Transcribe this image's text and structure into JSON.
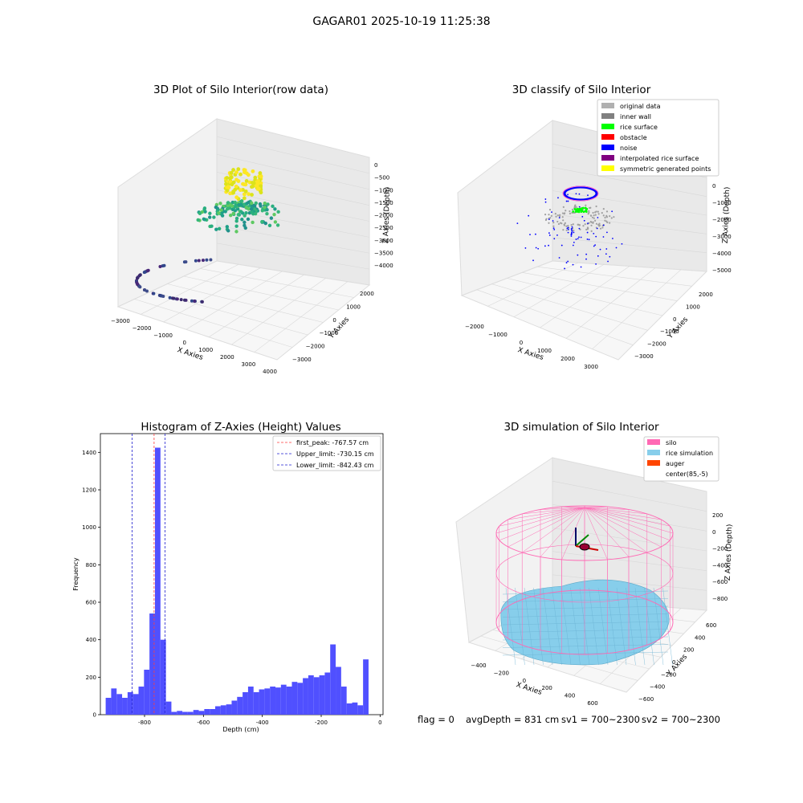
{
  "suptitle": "GAGAR01 2025-10-19 11:25:38",
  "colors": {
    "bar": "#5050ff",
    "first_peak": "#ff3b3b",
    "limits": "#1f1fcf",
    "silo": "#ff69b4",
    "rice": "#87ceeb",
    "auger": "#ff4500",
    "grid_pane": "#f2f2f2"
  },
  "panels": {
    "raw": {
      "title": "3D Plot of Silo Interior(row data)",
      "xlabel": "X Axies",
      "ylabel": "Y Axies",
      "zlabel": "Z Axies (Depth)",
      "x_ticks": [
        "−3000",
        "−2000",
        "−1000",
        "0",
        "1000",
        "2000",
        "3000",
        "4000"
      ],
      "y_ticks": [
        "2000",
        "1000",
        "0",
        "−1000",
        "−2000",
        "−3000"
      ],
      "z_ticks": [
        "0",
        "−500",
        "−1000",
        "−1500",
        "−2000",
        "−2500",
        "−3000",
        "−3500",
        "−4000"
      ]
    },
    "classify": {
      "title": "3D classify of Silo Interior",
      "xlabel": "X Axies",
      "ylabel": "Y Axies",
      "zlabel": "Z Axies (Depth)",
      "x_ticks": [
        "−2000",
        "−1000",
        "0",
        "1000",
        "2000",
        "3000"
      ],
      "y_ticks": [
        "2000",
        "1000",
        "0",
        "−1000",
        "−2000",
        "−3000"
      ],
      "z_ticks": [
        "0",
        "−1000",
        "−2000",
        "−3000",
        "−4000",
        "−5000"
      ],
      "legend": [
        {
          "label": "original data",
          "color": "#b0b0b0"
        },
        {
          "label": "inner wall",
          "color": "#808080"
        },
        {
          "label": "rice surface",
          "color": "#00ff00"
        },
        {
          "label": "obstacle",
          "color": "#ff0000"
        },
        {
          "label": "noise",
          "color": "#0000ff"
        },
        {
          "label": "interpolated rice surface",
          "color": "#800080"
        },
        {
          "label": "symmetric generated points",
          "color": "#ffff00"
        }
      ]
    },
    "simulation": {
      "title": "3D simulation of Silo Interior",
      "xlabel": "X Axies",
      "ylabel": "Y Axies",
      "zlabel": "Z Axies (Depth)",
      "x_ticks": [
        "−400",
        "−200",
        "0",
        "200",
        "400",
        "600"
      ],
      "y_ticks": [
        "600",
        "400",
        "200",
        "0",
        "−200",
        "−400",
        "−600"
      ],
      "z_ticks": [
        "200",
        "0",
        "−200",
        "−400",
        "−600",
        "−800"
      ],
      "legend": [
        {
          "label": "silo",
          "color": "#ff69b4"
        },
        {
          "label": "rice simulation",
          "color": "#87ceeb"
        },
        {
          "label": "auger",
          "color": "#ff4500"
        },
        {
          "label": "center(85,-5)",
          "color": ""
        }
      ]
    }
  },
  "status_line": {
    "flag": "flag = 0",
    "avg_depth": "avgDepth = 831 cm",
    "sv1": "sv1 = 700~2300",
    "sv2": "sv2 = 700~2300"
  },
  "chart_data": {
    "type": "bar",
    "title": "Histogram of Z-Axies (Height) Values",
    "xlabel": "Depth (cm)",
    "ylabel": "Frequency",
    "xlim": [
      -950,
      10
    ],
    "ylim": [
      0,
      1500
    ],
    "x_ticks": [
      -800,
      -600,
      -400,
      -200,
      0
    ],
    "y_ticks": [
      0,
      200,
      400,
      600,
      800,
      1000,
      1200,
      1400
    ],
    "bin_start": -932,
    "bin_width": 18.6,
    "values": [
      90,
      140,
      110,
      90,
      120,
      110,
      150,
      240,
      540,
      1425,
      400,
      70,
      15,
      20,
      15,
      15,
      25,
      20,
      30,
      30,
      45,
      50,
      55,
      75,
      95,
      120,
      150,
      120,
      135,
      140,
      150,
      145,
      160,
      150,
      175,
      170,
      195,
      210,
      200,
      210,
      225,
      375,
      255,
      150,
      60,
      65,
      50,
      295
    ],
    "lines": [
      {
        "label": "first_peak: -767.57 cm",
        "x": -767.57,
        "style": "red"
      },
      {
        "label": "Upper_limit: -730.15 cm",
        "x": -730.15,
        "style": "blue"
      },
      {
        "label": "Lower_limit: -842.43 cm",
        "x": -842.43,
        "style": "blue"
      }
    ]
  }
}
